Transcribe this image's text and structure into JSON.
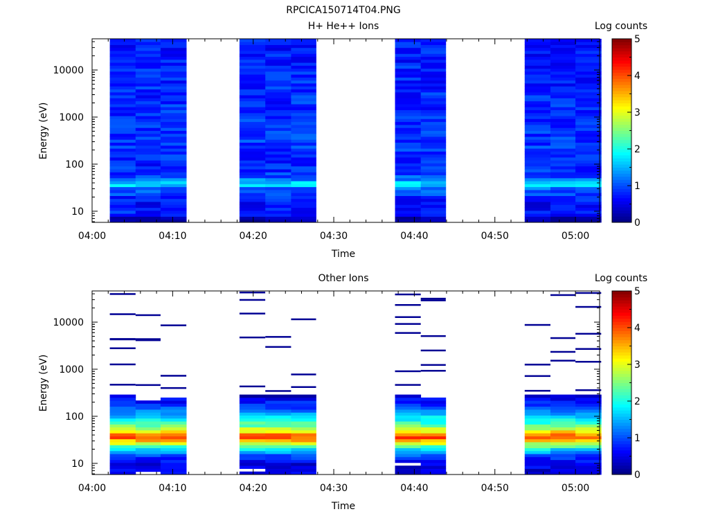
{
  "figure_title": "RPCICA150714T04.PNG",
  "chart_data": [
    {
      "type": "heatmap",
      "title": "H+ He++ Ions",
      "xlabel": "Time",
      "ylabel": "Energy (eV)",
      "x_ticks": [
        "04:00",
        "04:10",
        "04:20",
        "04:30",
        "04:40",
        "04:50",
        "05:00"
      ],
      "x_range_minutes": [
        0,
        63
      ],
      "y_ticks": [
        "10",
        "100",
        "1000",
        "10000"
      ],
      "y_scale": "log",
      "y_range": [
        5.8,
        46000
      ],
      "colorbar": {
        "label": "Log counts",
        "ticks": [
          "0",
          "1",
          "2",
          "3",
          "4",
          "5"
        ],
        "range": [
          0,
          5
        ]
      },
      "columns": [
        {
          "start_min": 2.2,
          "end_min": 5.4
        },
        {
          "start_min": 5.4,
          "end_min": 8.5
        },
        {
          "start_min": 8.5,
          "end_min": 11.7
        },
        {
          "start_min": 18.3,
          "end_min": 21.5
        },
        {
          "start_min": 21.5,
          "end_min": 24.7
        },
        {
          "start_min": 24.7,
          "end_min": 27.8
        },
        {
          "start_min": 37.6,
          "end_min": 40.8
        },
        {
          "start_min": 40.8,
          "end_min": 43.9
        },
        {
          "start_min": 53.7,
          "end_min": 56.9
        },
        {
          "start_min": 56.9,
          "end_min": 60.0
        },
        {
          "start_min": 60.0,
          "end_min": 63.2
        }
      ],
      "profile": [
        [
          7,
          0.2
        ],
        [
          9,
          0.8
        ],
        [
          14,
          0.6
        ],
        [
          20,
          0.8
        ],
        [
          26,
          1.0
        ],
        [
          32,
          1.2
        ],
        [
          38,
          1.9
        ],
        [
          45,
          1.3
        ],
        [
          60,
          0.9
        ],
        [
          100,
          0.8
        ],
        [
          300,
          0.9
        ],
        [
          1000,
          0.85
        ],
        [
          5000,
          0.8
        ],
        [
          20000,
          0.75
        ],
        [
          46000,
          0.7
        ]
      ]
    },
    {
      "type": "heatmap",
      "title": "Other Ions",
      "xlabel": "Time",
      "ylabel": "Energy (eV)",
      "x_ticks": [
        "04:00",
        "04:10",
        "04:20",
        "04:30",
        "04:40",
        "04:50",
        "05:00"
      ],
      "x_range_minutes": [
        0,
        63
      ],
      "y_ticks": [
        "10",
        "100",
        "1000",
        "10000"
      ],
      "y_scale": "log",
      "y_range": [
        5.8,
        46000
      ],
      "colorbar": {
        "label": "Log counts",
        "ticks": [
          "0",
          "1",
          "2",
          "3",
          "4",
          "5"
        ],
        "range": [
          0,
          5
        ]
      },
      "columns": [
        {
          "start_min": 2.2,
          "end_min": 5.4
        },
        {
          "start_min": 5.4,
          "end_min": 8.5
        },
        {
          "start_min": 8.5,
          "end_min": 11.7
        },
        {
          "start_min": 18.3,
          "end_min": 21.5
        },
        {
          "start_min": 21.5,
          "end_min": 24.7
        },
        {
          "start_min": 24.7,
          "end_min": 27.8
        },
        {
          "start_min": 37.6,
          "end_min": 40.8
        },
        {
          "start_min": 40.8,
          "end_min": 43.9
        },
        {
          "start_min": 53.7,
          "end_min": 56.9
        },
        {
          "start_min": 56.9,
          "end_min": 60.0
        },
        {
          "start_min": 60.0,
          "end_min": 63.2
        }
      ],
      "profile": [
        [
          10,
          0.5
        ],
        [
          15,
          1.0
        ],
        [
          20,
          1.8
        ],
        [
          25,
          2.6
        ],
        [
          30,
          3.4
        ],
        [
          36,
          4.0
        ],
        [
          42,
          3.7
        ],
        [
          50,
          3.0
        ],
        [
          60,
          2.5
        ],
        [
          80,
          2.0
        ],
        [
          110,
          1.5
        ],
        [
          160,
          0.9
        ],
        [
          250,
          0.5
        ],
        [
          300,
          0
        ]
      ],
      "high_energy_streaks_eV": [
        400,
        800,
        1500,
        2500,
        3800,
        5000,
        8000,
        14000,
        25000,
        38000
      ]
    }
  ]
}
